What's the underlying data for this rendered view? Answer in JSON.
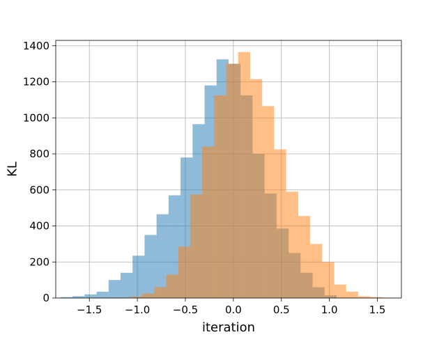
{
  "chart_data": {
    "type": "histogram",
    "title": "",
    "xlabel": "iteration",
    "ylabel": "KL",
    "xlim": [
      -1.85,
      1.75
    ],
    "ylim": [
      0,
      1430
    ],
    "grid": true,
    "legend": "none",
    "x_ticks": [
      -1.5,
      -1.0,
      -0.5,
      0.0,
      0.5,
      1.0,
      1.5
    ],
    "x_tick_labels": [
      "−1.5",
      "−1.0",
      "−0.5",
      "0.0",
      "0.5",
      "1.0",
      "1.5"
    ],
    "y_ticks": [
      0,
      200,
      400,
      600,
      800,
      1000,
      1200,
      1400
    ],
    "y_tick_labels": [
      "0",
      "200",
      "400",
      "600",
      "800",
      "1000",
      "1200",
      "1400"
    ],
    "series": [
      {
        "color": "#1f77b4",
        "opacity": 0.5,
        "bin_width": 0.125,
        "bins_start": [
          -1.8,
          -1.675,
          -1.55,
          -1.425,
          -1.3,
          -1.175,
          -1.05,
          -0.925,
          -0.8,
          -0.675,
          -0.55,
          -0.425,
          -0.3,
          -0.175,
          -0.05,
          0.075,
          0.2,
          0.325,
          0.45,
          0.575,
          0.7,
          0.825,
          0.95
        ],
        "values": [
          5,
          10,
          20,
          35,
          100,
          140,
          235,
          350,
          465,
          570,
          780,
          965,
          1180,
          1325,
          1300,
          1125,
          800,
          580,
          385,
          250,
          140,
          60,
          15
        ]
      },
      {
        "color": "#ff7f0e",
        "opacity": 0.5,
        "bin_width": 0.125,
        "bins_start": [
          -1.2,
          -1.075,
          -0.95,
          -0.825,
          -0.7,
          -0.575,
          -0.45,
          -0.325,
          -0.2,
          -0.075,
          0.05,
          0.175,
          0.3,
          0.425,
          0.55,
          0.675,
          0.8,
          0.925,
          1.05,
          1.175,
          1.3,
          1.425,
          1.55
        ],
        "values": [
          2,
          8,
          25,
          60,
          130,
          285,
          575,
          840,
          1125,
          1300,
          1365,
          1215,
          1065,
          825,
          590,
          455,
          300,
          200,
          75,
          35,
          10,
          5,
          2
        ]
      }
    ]
  }
}
